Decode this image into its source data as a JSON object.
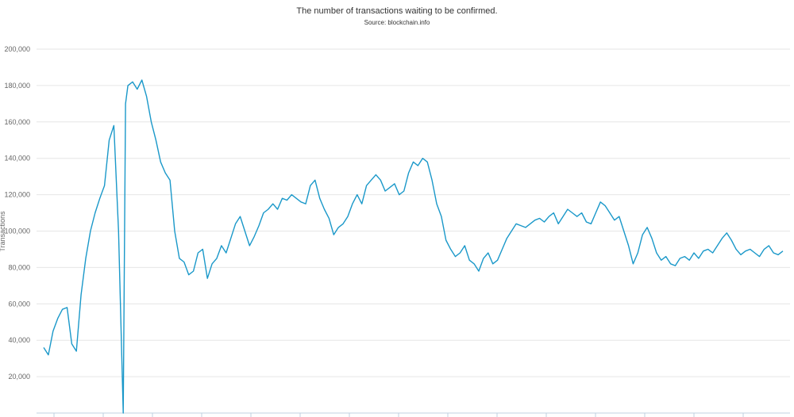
{
  "header": {
    "subtitle": "The number of transactions waiting to be confirmed.",
    "source": "Source: blockchain.info"
  },
  "colors": {
    "series": "#1a98c9",
    "grid": "#e6e6e6",
    "axis": "#c0d0e0"
  },
  "chart_data": {
    "type": "line",
    "title": "",
    "subtitle": "The number of transactions waiting to be confirmed.",
    "source": "Source: blockchain.info",
    "xlabel": "",
    "ylabel": "Transactions",
    "ylim": [
      0,
      200000
    ],
    "yticks": [
      20000,
      40000,
      60000,
      80000,
      100000,
      120000,
      140000,
      160000,
      180000,
      200000
    ],
    "ytick_labels": [
      "20,000",
      "40,000",
      "60,000",
      "80,000",
      "100,000",
      "120,000",
      "140,000",
      "160,000",
      "180,000",
      "200,000"
    ],
    "grid": true,
    "legend": "none",
    "series": [
      {
        "x": [
          0,
          1,
          2,
          3,
          4,
          5,
          6,
          7,
          8,
          9,
          10,
          11,
          12,
          13,
          14,
          15,
          16,
          17,
          17.5,
          18,
          19,
          20,
          21,
          22,
          23,
          24,
          25,
          26,
          27,
          28,
          29,
          30,
          31,
          32,
          33,
          34,
          35,
          36,
          37,
          38,
          39,
          40,
          41,
          42,
          43,
          44,
          45,
          46,
          47,
          48,
          49,
          50,
          51,
          52,
          53,
          54,
          55,
          56,
          57,
          58,
          59,
          60,
          61,
          62,
          63,
          64,
          65,
          66,
          67,
          68,
          69,
          70,
          71,
          72,
          73,
          74,
          75,
          76,
          77,
          78,
          79,
          80,
          81,
          82,
          83,
          84,
          85,
          86,
          87,
          88,
          89,
          90,
          91,
          92,
          93,
          94,
          95,
          96,
          97,
          98,
          99,
          100,
          101,
          102,
          103,
          104,
          105,
          106,
          107,
          108,
          109,
          110,
          111,
          112,
          113,
          114,
          115,
          116,
          117,
          118,
          119,
          120,
          121,
          122,
          123,
          124,
          125,
          126,
          127,
          128,
          129,
          130,
          131,
          132,
          133,
          134,
          135,
          136,
          137,
          138,
          139,
          140,
          141,
          142,
          143,
          144,
          145,
          146,
          147,
          148,
          149,
          150,
          151,
          152,
          153,
          154,
          155,
          156,
          157,
          158
        ],
        "values": [
          36000,
          32000,
          45000,
          52000,
          57000,
          58000,
          38000,
          34000,
          65000,
          85000,
          100000,
          110000,
          118000,
          125000,
          150000,
          158000,
          100000,
          0,
          170000,
          180000,
          182000,
          178000,
          183000,
          174000,
          160000,
          150000,
          138000,
          132000,
          128000,
          100000,
          85000,
          83000,
          76000,
          78000,
          88000,
          90000,
          74000,
          82000,
          85000,
          92000,
          88000,
          96000,
          104000,
          108000,
          100000,
          92000,
          97000,
          103000,
          110000,
          112000,
          115000,
          112000,
          118000,
          117000,
          120000,
          118000,
          116000,
          115000,
          125000,
          128000,
          118000,
          112000,
          107000,
          98000,
          102000,
          104000,
          108000,
          115000,
          120000,
          115000,
          125000,
          128000,
          131000,
          128000,
          122000,
          124000,
          126000,
          120000,
          122000,
          132000,
          138000,
          136000,
          140000,
          138000,
          128000,
          115000,
          108000,
          95000,
          90000,
          86000,
          88000,
          92000,
          84000,
          82000,
          78000,
          85000,
          88000,
          82000,
          84000,
          90000,
          96000,
          100000,
          104000,
          103000,
          102000,
          104000,
          106000,
          107000,
          105000,
          108000,
          110000,
          104000,
          108000,
          112000,
          110000,
          108000,
          110000,
          105000,
          104000,
          110000,
          116000,
          114000,
          110000,
          106000,
          108000,
          100000,
          92000,
          82000,
          88000,
          98000,
          102000,
          96000,
          88000,
          84000,
          86000,
          82000,
          81000,
          85000,
          86000,
          84000,
          88000,
          85000,
          89000,
          90000,
          88000,
          92000,
          96000,
          99000,
          95000,
          90000,
          87000,
          89000,
          90000,
          88000,
          86000,
          90000,
          92000,
          88000,
          87000,
          89000
        ]
      }
    ]
  }
}
